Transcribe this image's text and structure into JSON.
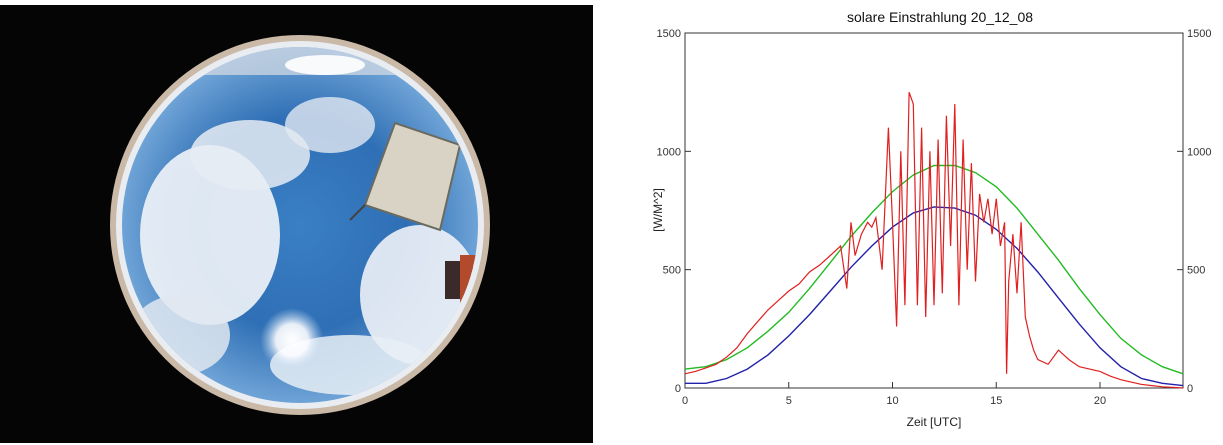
{
  "photo": {
    "description_icon": "fisheye-sky-camera-photo"
  },
  "chart_data": {
    "type": "line",
    "title": "solare Einstrahlung   20_12_08",
    "xlabel": "Zeit [UTC]",
    "ylabel": "[W/M^2]",
    "xlim": [
      0,
      24
    ],
    "ylim": [
      0,
      1500
    ],
    "x_ticks": [
      "0",
      "5",
      "10",
      "15",
      "20"
    ],
    "y_ticks": [
      "0",
      "500",
      "1000",
      "1500"
    ],
    "y_ticks_right": [
      "0",
      "500",
      "1000",
      "1500"
    ],
    "grid": false,
    "colors": {
      "measured": "#e02020",
      "clear_sky_upper": "#22bb22",
      "clear_sky_lower": "#2222aa"
    },
    "series": [
      {
        "key": "clear_sky_upper",
        "x": [
          0,
          1,
          2,
          3,
          4,
          5,
          6,
          7,
          8,
          9,
          10,
          11,
          12,
          13,
          14,
          15,
          16,
          17,
          18,
          19,
          20,
          21,
          22,
          23,
          24
        ],
        "values": [
          80,
          90,
          120,
          170,
          240,
          320,
          420,
          530,
          640,
          740,
          830,
          900,
          940,
          940,
          910,
          850,
          760,
          650,
          540,
          420,
          310,
          210,
          140,
          90,
          60
        ]
      },
      {
        "key": "clear_sky_lower",
        "x": [
          0,
          1,
          2,
          3,
          4,
          5,
          6,
          7,
          8,
          9,
          10,
          11,
          12,
          13,
          14,
          15,
          16,
          17,
          18,
          19,
          20,
          21,
          22,
          23,
          24
        ],
        "values": [
          20,
          20,
          40,
          80,
          140,
          220,
          310,
          410,
          510,
          600,
          680,
          740,
          765,
          760,
          730,
          670,
          590,
          490,
          380,
          270,
          170,
          90,
          40,
          20,
          10
        ]
      },
      {
        "key": "measured",
        "x": [
          0,
          0.5,
          1,
          1.5,
          2,
          2.5,
          3,
          3.5,
          4,
          4.5,
          5,
          5.5,
          6,
          6.5,
          7,
          7.5,
          7.8,
          8,
          8.2,
          8.5,
          8.8,
          9,
          9.2,
          9.5,
          9.8,
          10,
          10.2,
          10.4,
          10.6,
          10.8,
          11,
          11.2,
          11.4,
          11.6,
          11.8,
          12,
          12.2,
          12.4,
          12.6,
          12.8,
          13,
          13.2,
          13.4,
          13.6,
          13.8,
          14,
          14.2,
          14.4,
          14.6,
          14.8,
          15,
          15.2,
          15.4,
          15.5,
          15.6,
          15.8,
          16,
          16.2,
          16.4,
          16.6,
          16.8,
          17,
          17.5,
          18,
          18.5,
          19,
          19.5,
          20,
          20.5,
          21,
          21.5,
          22,
          22.5,
          23,
          23.5,
          24
        ],
        "values": [
          60,
          70,
          85,
          100,
          130,
          170,
          230,
          280,
          330,
          370,
          410,
          440,
          490,
          520,
          560,
          600,
          420,
          700,
          560,
          650,
          700,
          680,
          720,
          500,
          1100,
          700,
          260,
          1000,
          350,
          1250,
          1200,
          350,
          1100,
          300,
          1000,
          350,
          1050,
          400,
          1150,
          600,
          1200,
          350,
          1050,
          500,
          950,
          450,
          820,
          700,
          800,
          650,
          800,
          600,
          700,
          60,
          450,
          650,
          400,
          700,
          300,
          220,
          160,
          120,
          100,
          160,
          120,
          90,
          80,
          70,
          50,
          35,
          25,
          15,
          10,
          5,
          3,
          0
        ]
      }
    ]
  }
}
